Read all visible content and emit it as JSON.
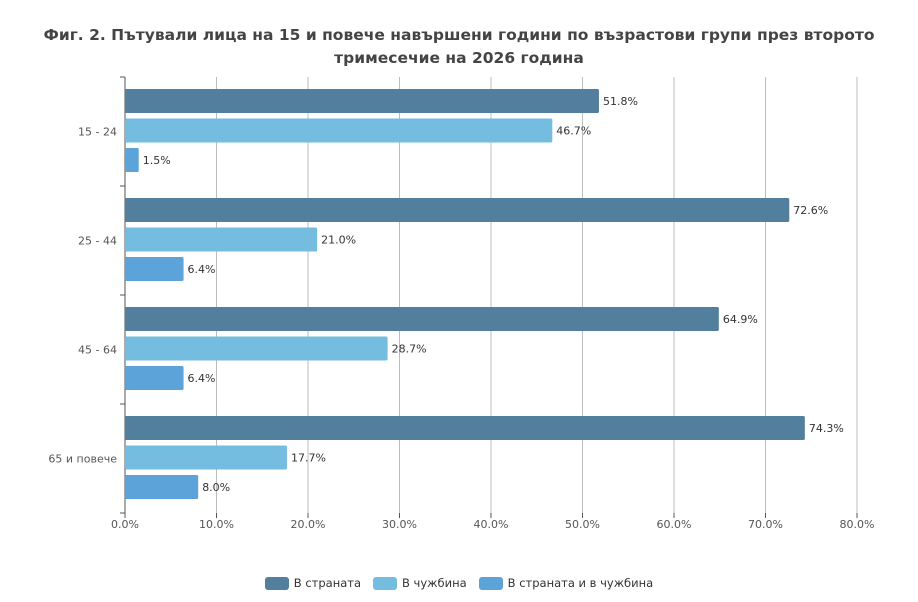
{
  "title_line1": "Фиг. 2. Пътували лица на 15 и повече навършени години по възрастови групи през второто",
  "title_line2": "тримесечие на 2026 година",
  "chart_data": {
    "type": "bar",
    "orientation": "horizontal",
    "title": "Фиг. 2. Пътували лица на 15 и повече навършени години по възрастови групи през второто тримесечие на 2026 година",
    "categories": [
      "15 - 24",
      "25 - 44",
      "45 - 64",
      "65 и повече"
    ],
    "series": [
      {
        "name": "В страната",
        "values": [
          51.8,
          72.6,
          64.9,
          74.3
        ],
        "color": "#537f9e",
        "labels": [
          "51.8%",
          "72.6%",
          "64.9%",
          "74.3%"
        ]
      },
      {
        "name": "В чужбина",
        "values": [
          46.7,
          21.0,
          28.7,
          17.7
        ],
        "color": "#74bde0",
        "labels": [
          "46.7%",
          "21.0%",
          "28.7%",
          "17.7%"
        ]
      },
      {
        "name": "В страната и в чужбина",
        "values": [
          1.5,
          6.4,
          6.4,
          8.0
        ],
        "color": "#5ba3d9",
        "labels": [
          "1.5%",
          "6.4%",
          "6.4%",
          "8.0%"
        ]
      }
    ],
    "xlim": [
      0,
      80
    ],
    "xticks": [
      0,
      10,
      20,
      30,
      40,
      50,
      60,
      70,
      80
    ],
    "xtick_labels": [
      "0.0%",
      "10.0%",
      "20.0%",
      "30.0%",
      "40.0%",
      "50.0%",
      "60.0%",
      "70.0%",
      "80.0%"
    ],
    "xlabel": "",
    "ylabel": "",
    "grid": "vertical",
    "legend_position": "bottom"
  }
}
